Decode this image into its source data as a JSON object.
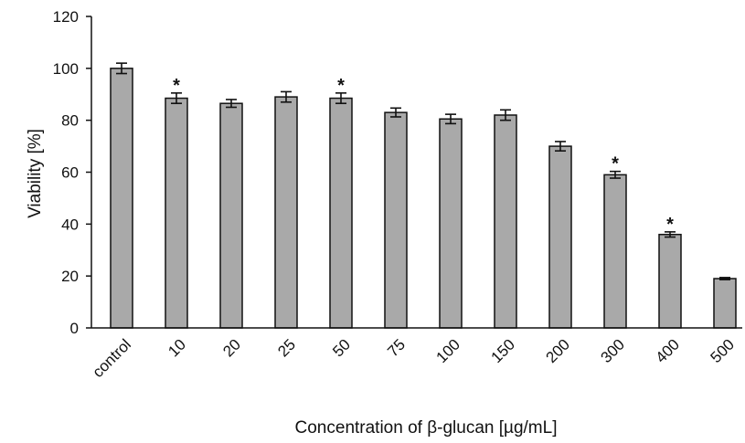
{
  "chart_data": {
    "type": "bar",
    "categories": [
      "control",
      "10",
      "20",
      "25",
      "50",
      "75",
      "100",
      "150",
      "200",
      "300",
      "400",
      "500"
    ],
    "values": [
      100,
      88.5,
      86.5,
      89,
      88.5,
      83,
      80.5,
      82,
      70,
      59,
      36,
      19
    ],
    "errors": [
      2,
      2,
      1.5,
      2,
      2,
      1.7,
      1.8,
      2,
      1.8,
      1.3,
      1,
      0.4
    ],
    "significant": [
      false,
      true,
      false,
      false,
      true,
      false,
      false,
      false,
      false,
      true,
      true,
      false
    ],
    "significance_marker": "*",
    "xlabel": "Concentration of β-glucan [µg/mL]",
    "ylabel": "Viability [%]",
    "ylim": [
      0,
      120
    ],
    "yticks": [
      "0",
      "20",
      "40",
      "60",
      "80",
      "100",
      "120"
    ],
    "grid": false,
    "legend": "none",
    "bar_color": "#a9a9a9",
    "bar_edge_color": "#111111"
  }
}
